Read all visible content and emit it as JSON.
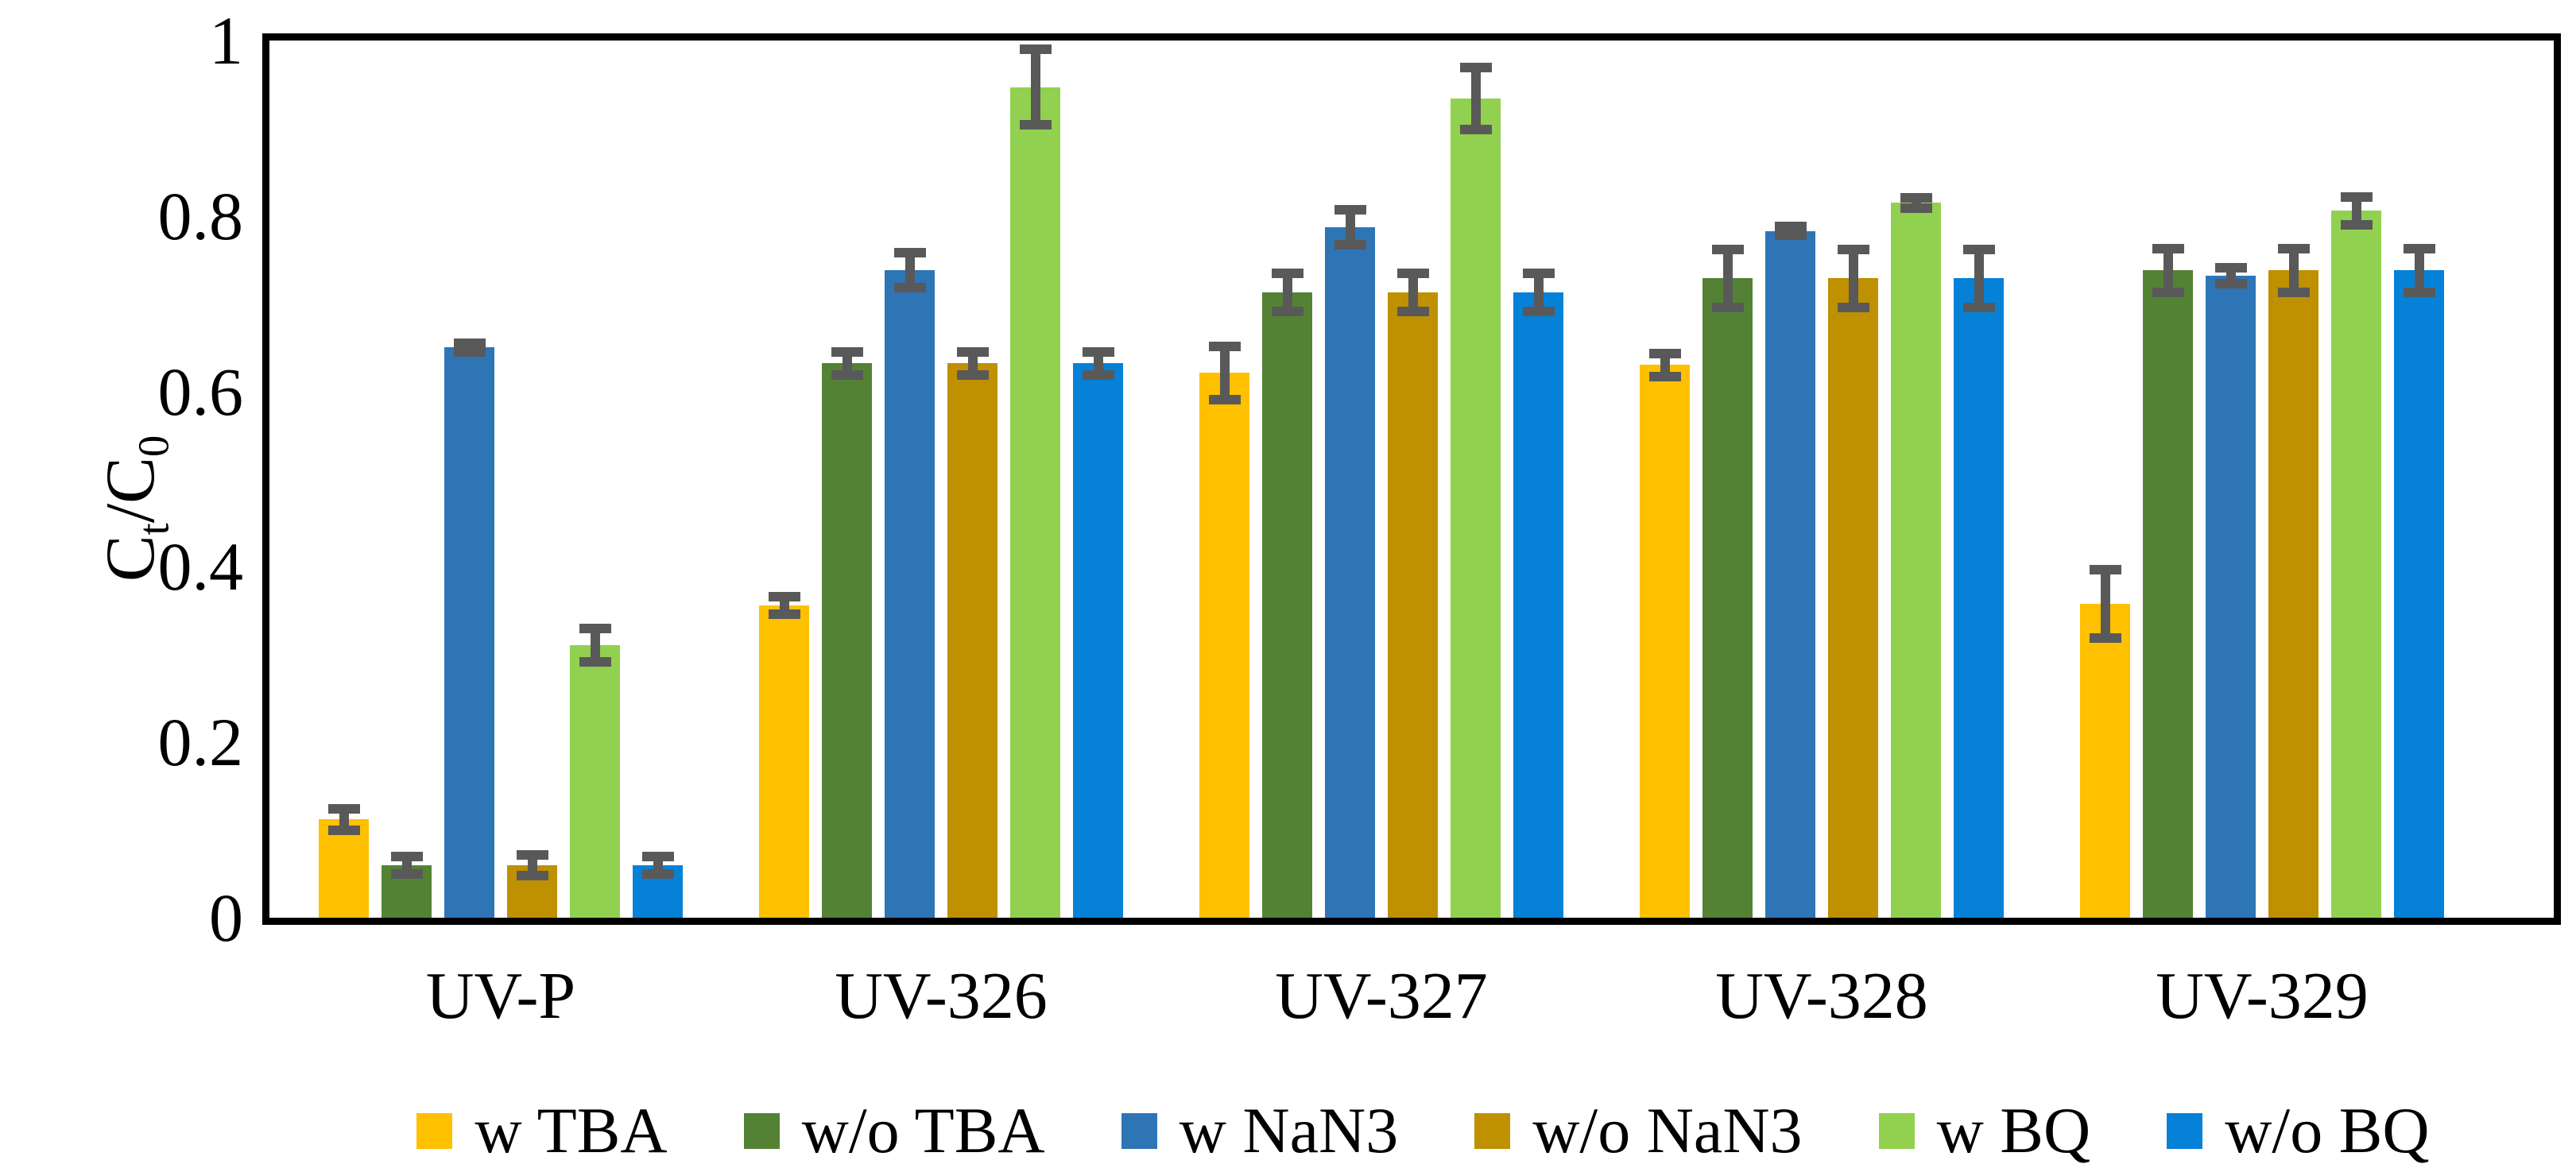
{
  "chart_data": {
    "type": "bar",
    "title": "",
    "ylabel": "Ct/C0",
    "ylabel_parts": {
      "base1": "C",
      "sub1": "t",
      "mid": "/C",
      "sub2": "0"
    },
    "xlabel": "",
    "categories": [
      "UV-P",
      "UV-326",
      "UV-327",
      "UV-328",
      "UV-329"
    ],
    "series": [
      {
        "name": "w TBA",
        "color": "#FFC000",
        "values": [
          0.112,
          0.356,
          0.621,
          0.63,
          0.358
        ],
        "errors": [
          0.012,
          0.01,
          0.03,
          0.013,
          0.039
        ]
      },
      {
        "name": "w/o TBA",
        "color": "#548235",
        "values": [
          0.06,
          0.632,
          0.713,
          0.729,
          0.738
        ],
        "errors": [
          0.01,
          0.013,
          0.022,
          0.033,
          0.025
        ]
      },
      {
        "name": "w NaN3",
        "color": "#2E75B6",
        "values": [
          0.65,
          0.738,
          0.787,
          0.783,
          0.732
        ],
        "errors": [
          0.005,
          0.02,
          0.02,
          0.005,
          0.009
        ]
      },
      {
        "name": "w/o NaN3",
        "color": "#BF9000",
        "values": [
          0.06,
          0.632,
          0.713,
          0.729,
          0.738
        ],
        "errors": [
          0.012,
          0.013,
          0.022,
          0.033,
          0.025
        ]
      },
      {
        "name": "w BQ",
        "color": "#92D050",
        "values": [
          0.311,
          0.947,
          0.934,
          0.815,
          0.806
        ],
        "errors": [
          0.019,
          0.043,
          0.035,
          0.006,
          0.016
        ]
      },
      {
        "name": "w/o BQ",
        "color": "#0681D8",
        "values": [
          0.06,
          0.632,
          0.713,
          0.729,
          0.738
        ],
        "errors": [
          0.01,
          0.013,
          0.022,
          0.033,
          0.025
        ]
      }
    ],
    "y_ticks": [
      {
        "label": "0",
        "value": 0
      },
      {
        "label": "0.2",
        "value": 0.2
      },
      {
        "label": "0.4",
        "value": 0.4
      },
      {
        "label": "0.6",
        "value": 0.6
      },
      {
        "label": "0.8",
        "value": 0.8
      },
      {
        "label": "1",
        "value": 1
      }
    ],
    "ylim": [
      0,
      1
    ],
    "grid": false,
    "legend_position": "bottom",
    "error_bar_color": "#595959",
    "axis_color": "#000000",
    "background_color": "#FFFFFF"
  }
}
